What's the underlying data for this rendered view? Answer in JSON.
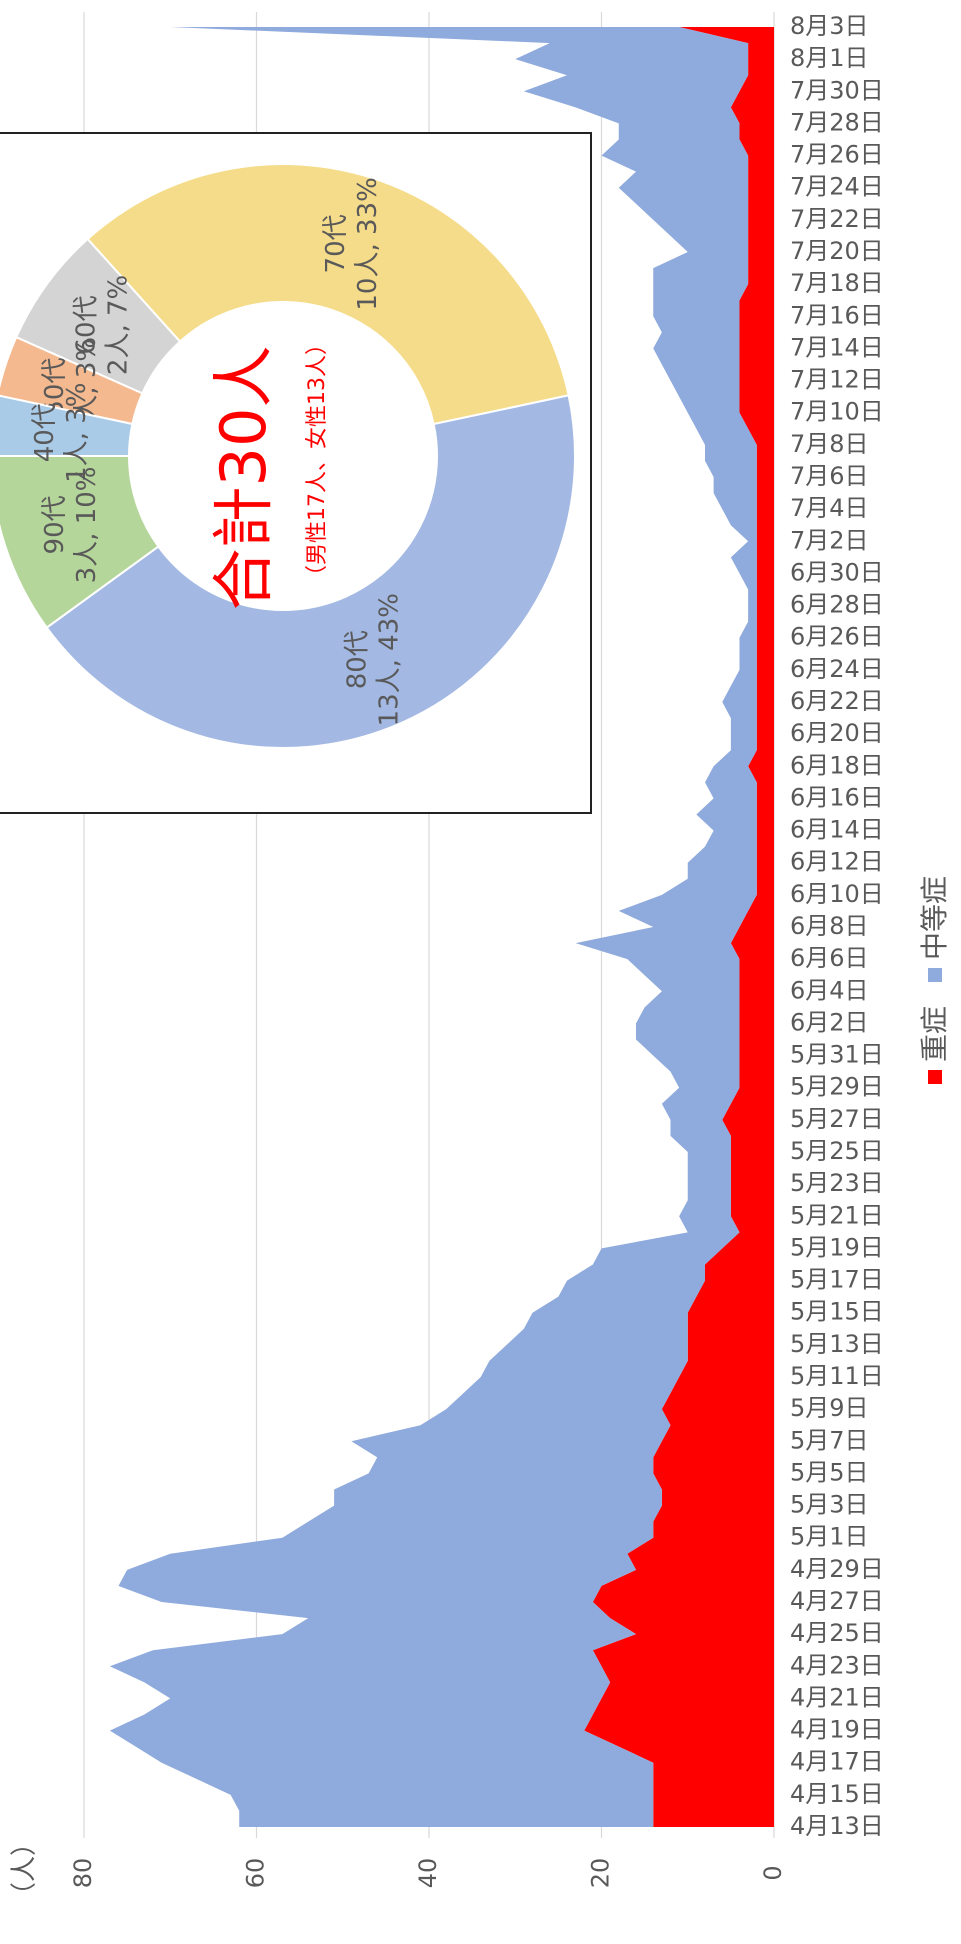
{
  "chart_data": [
    {
      "type": "area",
      "stacked": true,
      "ylabel": "（人）",
      "categories": [
        "4月13日",
        null,
        "4月15日",
        null,
        "4月17日",
        null,
        "4月19日",
        null,
        "4月21日",
        null,
        "4月23日",
        null,
        "4月25日",
        null,
        "4月27日",
        null,
        "4月29日",
        null,
        "5月1日",
        null,
        "5月3日",
        null,
        "5月5日",
        null,
        "5月7日",
        null,
        "5月9日",
        null,
        "5月11日",
        null,
        "5月13日",
        null,
        "5月15日",
        null,
        "5月17日",
        null,
        "5月19日",
        null,
        "5月21日",
        null,
        "5月23日",
        null,
        "5月25日",
        null,
        "5月27日",
        null,
        "5月29日",
        null,
        "5月31日",
        null,
        "6月2日",
        null,
        "6月4日",
        null,
        "6月6日",
        null,
        "6月8日",
        null,
        "6月10日",
        null,
        "6月12日",
        null,
        "6月14日",
        null,
        "6月16日",
        null,
        "6月18日",
        null,
        "6月20日",
        null,
        "6月22日",
        null,
        "6月24日",
        null,
        "6月26日",
        null,
        "6月28日",
        null,
        "6月30日",
        null,
        "7月2日",
        null,
        "7月4日",
        null,
        "7月6日",
        null,
        "7月8日",
        null,
        "7月10日",
        null,
        "7月12日",
        null,
        "7月14日",
        null,
        "7月16日",
        null,
        "7月18日",
        null,
        "7月20日",
        null,
        "7月22日",
        null,
        "7月24日",
        null,
        "7月26日",
        null,
        "7月28日",
        null,
        "7月30日",
        null,
        "8月1日",
        null,
        "8月3日"
      ],
      "series": [
        {
          "name": "重症",
          "color": "#ff0000",
          "values": [
            14,
            14,
            14,
            14,
            14,
            18,
            22,
            21,
            20,
            19,
            20,
            21,
            16,
            19,
            21,
            20,
            16,
            17,
            14,
            14,
            13,
            13,
            14,
            14,
            13,
            12,
            13,
            12,
            11,
            10,
            10,
            10,
            10,
            9,
            8,
            8,
            6,
            4,
            5,
            5,
            5,
            5,
            5,
            5,
            6,
            5,
            4,
            4,
            4,
            4,
            4,
            4,
            4,
            4,
            4,
            5,
            4,
            3,
            2,
            2,
            2,
            2,
            2,
            2,
            2,
            2,
            3,
            2,
            2,
            2,
            2,
            2,
            2,
            2,
            2,
            2,
            2,
            2,
            2,
            2,
            2,
            2,
            2,
            2,
            2,
            2,
            2,
            3,
            4,
            4,
            4,
            4,
            4,
            4,
            4,
            4,
            3,
            3,
            3,
            3,
            3,
            3,
            3,
            3,
            3,
            4,
            4,
            5,
            4,
            3,
            3,
            3,
            11
          ]
        },
        {
          "name": "中等症",
          "color": "#8faadc",
          "values": [
            48,
            48,
            49,
            53,
            57,
            56,
            55,
            52,
            50,
            54,
            57,
            51,
            41,
            35,
            50,
            56,
            59,
            53,
            43,
            40,
            38,
            38,
            33,
            32,
            36,
            29,
            25,
            24,
            23,
            23,
            21,
            19,
            18,
            16,
            16,
            13,
            14,
            6,
            6,
            5,
            5,
            5,
            5,
            7,
            6,
            8,
            7,
            8,
            10,
            12,
            12,
            11,
            9,
            11,
            13,
            18,
            10,
            15,
            11,
            8,
            8,
            6,
            5,
            7,
            5,
            6,
            4,
            3,
            3,
            3,
            4,
            3,
            2,
            2,
            2,
            1,
            1,
            1,
            2,
            3,
            1,
            3,
            4,
            5,
            5,
            6,
            6,
            6,
            6,
            7,
            8,
            9,
            10,
            9,
            10,
            10,
            11,
            11,
            7,
            9,
            11,
            13,
            15,
            13,
            17,
            14,
            14,
            18,
            25,
            21,
            27,
            23,
            59
          ]
        }
      ],
      "ylim": [
        0,
        80
      ],
      "yticks": [
        0,
        20,
        40,
        60,
        80
      ],
      "grid": true,
      "legend": "right"
    },
    {
      "type": "pie",
      "donut": true,
      "title": "合計30人",
      "subtitle": "（男性17人、女性13人）",
      "categories": [
        "90代",
        "80代",
        "70代",
        "60代",
        "50代",
        "40代"
      ],
      "values": [
        3,
        13,
        10,
        2,
        1,
        1
      ],
      "value_labels": [
        "3人, 10%",
        "13人, 43%",
        "10人, 33%",
        "2人, 7%",
        "1人, 3%",
        "1人, 3%"
      ],
      "colors": [
        "#b5d69a",
        "#a3b9e3",
        "#f5dc8a",
        "#d4d4d4",
        "#f4b98e",
        "#a9cbe8"
      ]
    }
  ]
}
